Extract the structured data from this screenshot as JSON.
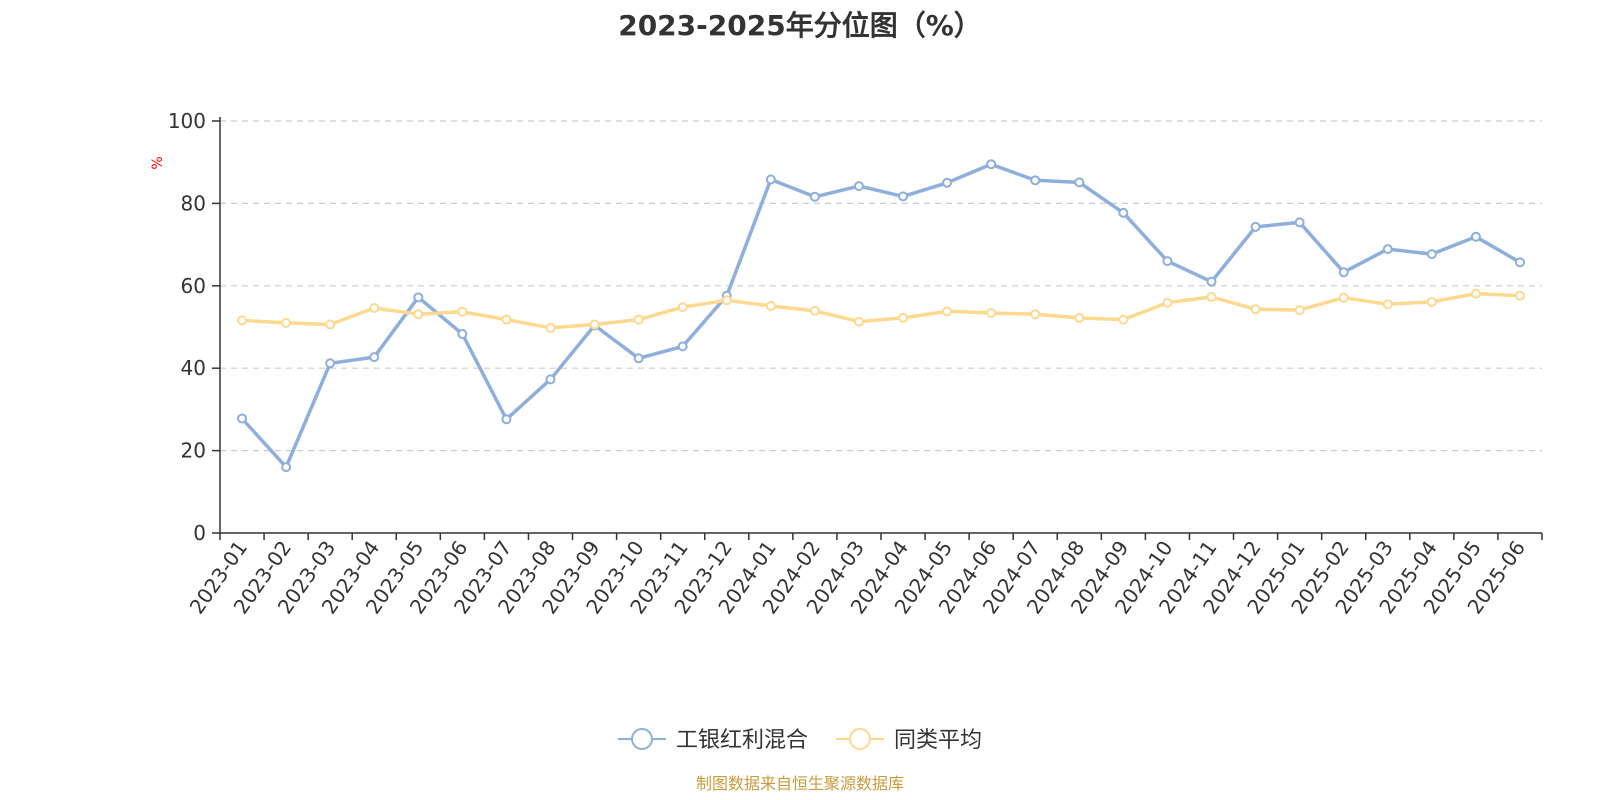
{
  "title": "2023-2025年分位图（%）",
  "source": "制图数据来自恒生聚源数据库",
  "chart_data": {
    "type": "line",
    "title": "2023-2025年分位图（%）",
    "ylabel": "%",
    "ylabel_color": "#ff0000",
    "ylim": [
      0,
      100
    ],
    "yticks": [
      0,
      20,
      40,
      60,
      80,
      100
    ],
    "grid": true,
    "legend_position": "bottom-center",
    "categories": [
      "2023-01",
      "2023-02",
      "2023-03",
      "2023-04",
      "2023-05",
      "2023-06",
      "2023-07",
      "2023-08",
      "2023-09",
      "2023-10",
      "2023-11",
      "2023-12",
      "2024-01",
      "2024-02",
      "2024-03",
      "2024-04",
      "2024-05",
      "2024-06",
      "2024-07",
      "2024-08",
      "2024-09",
      "2024-10",
      "2024-11",
      "2024-12",
      "2025-01",
      "2025-02",
      "2025-03",
      "2025-04",
      "2025-05",
      "2025-06"
    ],
    "series": [
      {
        "name": "工银红利混合",
        "color": "#8eaedb",
        "values": [
          27.8,
          16.0,
          41.2,
          42.7,
          57.2,
          48.3,
          27.6,
          37.3,
          50.4,
          42.4,
          45.3,
          57.6,
          85.8,
          81.6,
          84.2,
          81.7,
          85.0,
          89.5,
          85.6,
          85.1,
          77.7,
          66.0,
          61.0,
          74.3,
          75.4,
          63.3,
          68.9,
          67.7,
          71.9,
          65.7
        ]
      },
      {
        "name": "同类平均",
        "color": "#fcd98f",
        "values": [
          51.6,
          51.0,
          50.6,
          54.6,
          53.1,
          53.7,
          51.8,
          49.8,
          50.6,
          51.8,
          54.8,
          56.5,
          55.1,
          53.9,
          51.3,
          52.2,
          53.8,
          53.4,
          53.1,
          52.2,
          51.8,
          55.9,
          57.3,
          54.3,
          54.1,
          57.1,
          55.5,
          56.1,
          58.1,
          57.6
        ]
      }
    ]
  }
}
